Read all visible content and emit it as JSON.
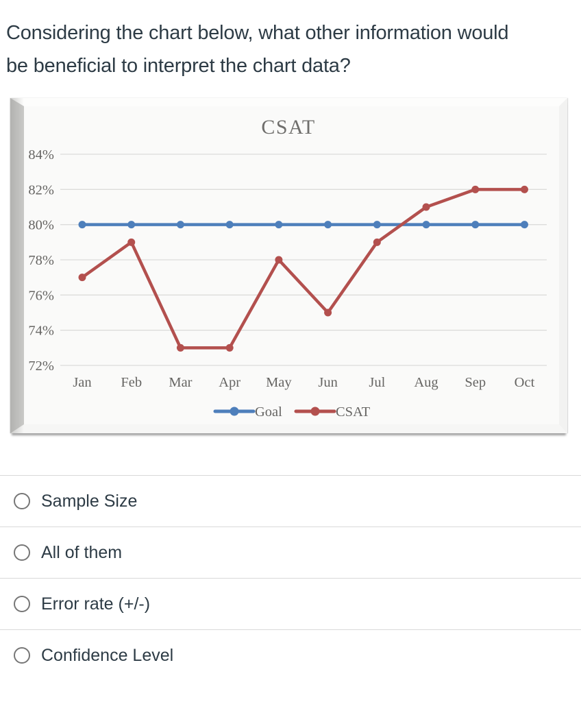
{
  "question": {
    "text": "Considering the chart below, what other information would be beneficial to interpret the chart data?"
  },
  "chart_data": {
    "type": "line",
    "title": "CSAT",
    "categories": [
      "Jan",
      "Feb",
      "Mar",
      "Apr",
      "May",
      "Jun",
      "Jul",
      "Aug",
      "Sep",
      "Oct"
    ],
    "series": [
      {
        "name": "Goal",
        "color": "#4E7FBB",
        "values": [
          80,
          80,
          80,
          80,
          80,
          80,
          80,
          80,
          80,
          80
        ]
      },
      {
        "name": "CSAT",
        "color": "#B3504E",
        "values": [
          77,
          79,
          73,
          73,
          78,
          75,
          79,
          81,
          82,
          82
        ]
      }
    ],
    "xlabel": "",
    "ylabel": "",
    "ylim": [
      72,
      84
    ],
    "ytick_step": 2,
    "ytick_suffix": "%",
    "grid": true,
    "legend_position": "bottom",
    "marker": "circle"
  },
  "options": [
    {
      "label": "Sample Size",
      "selected": false
    },
    {
      "label": "All of them",
      "selected": false
    },
    {
      "label": "Error rate (+/-)",
      "selected": false
    },
    {
      "label": "Confidence Level",
      "selected": false
    }
  ],
  "colors": {
    "goal_line": "#4E7FBB",
    "csat_line": "#B3504E",
    "gridline": "#dcdcda",
    "divider": "#d9d9d9",
    "text": "#2d3b45"
  }
}
